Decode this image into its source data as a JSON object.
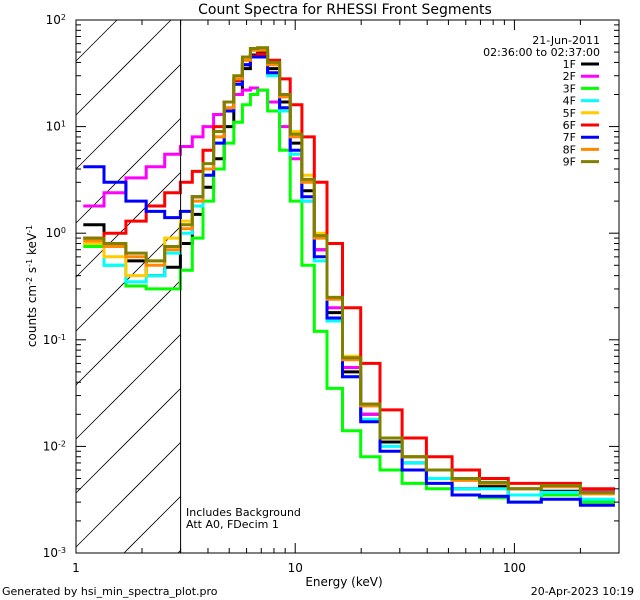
{
  "chart_data": {
    "type": "line",
    "title": "Count Spectra for RHESSI Front Segments",
    "xlabel": "Energy (keV)",
    "ylabel": "counts cm^-2 s^-1 keV^-1",
    "xscale": "log",
    "yscale": "log",
    "xlim": [
      1,
      300
    ],
    "ylim": [
      0.001,
      100
    ],
    "x_tick_labels": [
      "1",
      "10",
      "100"
    ],
    "y_tick_labels": [
      "10",
      "10",
      "10",
      "10",
      "10",
      "10"
    ],
    "y_tick_exponents": [
      "-3",
      "-2",
      "-1",
      "0",
      "1",
      "2"
    ],
    "shaded_region": {
      "from_keV": 1,
      "to_keV": 3,
      "style": "diagonal hatch"
    },
    "date": "21-Jun-2011",
    "time_range": "02:36:00 to 02:37:00",
    "annotations": [
      "Includes Background",
      "Att A0, FDecim 1"
    ],
    "series": [
      {
        "name": "1F",
        "color": "#000000",
        "values": [
          1.2,
          0.75,
          0.55,
          0.4,
          0.48,
          0.8,
          1.5,
          2.7,
          5.0,
          10.0,
          20.0,
          35.0,
          47.0,
          50.0,
          35.0,
          17.0,
          7.0,
          2.5,
          0.7,
          0.18,
          0.05,
          0.02,
          0.011,
          0.007,
          0.005,
          0.004,
          0.0042,
          0.0035,
          0.0038,
          0.003
        ]
      },
      {
        "name": "2F",
        "color": "#ff00ff",
        "values": [
          1.8,
          2.4,
          3.3,
          4.2,
          5.5,
          6.5,
          8.0,
          10.0,
          13.0,
          17.0,
          20.0,
          22.0,
          23.0,
          22.0,
          17.0,
          10.0,
          5.0,
          2.0,
          0.7,
          0.2,
          0.055,
          0.02,
          0.012,
          0.008,
          0.006,
          0.005,
          0.0045,
          0.004,
          0.0042,
          0.0038
        ]
      },
      {
        "name": "3F",
        "color": "#00ff00",
        "values": [
          0.75,
          0.5,
          0.32,
          0.3,
          0.3,
          0.45,
          0.9,
          2.0,
          4.0,
          7.0,
          11.0,
          16.0,
          20.0,
          22.0,
          14.0,
          6.0,
          2.0,
          0.5,
          0.12,
          0.035,
          0.014,
          0.008,
          0.006,
          0.0045,
          0.004,
          0.0035,
          0.0033,
          0.003,
          0.0035,
          0.003
        ]
      },
      {
        "name": "4F",
        "color": "#00ffff",
        "values": [
          0.8,
          0.5,
          0.35,
          0.4,
          0.65,
          1.0,
          1.8,
          3.5,
          7.0,
          14.0,
          25.0,
          38.0,
          46.0,
          45.0,
          30.0,
          14.0,
          5.5,
          2.0,
          0.55,
          0.15,
          0.045,
          0.018,
          0.01,
          0.007,
          0.005,
          0.004,
          0.004,
          0.0035,
          0.0037,
          0.0032
        ]
      },
      {
        "name": "5F",
        "color": "#ffcc00",
        "values": [
          0.8,
          0.6,
          0.4,
          0.55,
          0.9,
          1.3,
          2.2,
          4.0,
          8.0,
          15.0,
          27.0,
          42.0,
          52.0,
          55.0,
          40.0,
          20.0,
          9.0,
          3.5,
          1.0,
          0.25,
          0.07,
          0.025,
          0.012,
          0.008,
          0.006,
          0.005,
          0.0045,
          0.004,
          0.0042,
          0.0036
        ]
      },
      {
        "name": "6F",
        "color": "#ff0000",
        "values": [
          0.9,
          1.0,
          1.3,
          1.8,
          2.4,
          3.0,
          3.8,
          6.0,
          10.0,
          17.0,
          27.0,
          38.0,
          46.0,
          48.0,
          42.0,
          28.0,
          16.0,
          8.0,
          3.0,
          0.8,
          0.2,
          0.06,
          0.022,
          0.012,
          0.008,
          0.006,
          0.005,
          0.0045,
          0.0045,
          0.004
        ]
      },
      {
        "name": "7F",
        "color": "#0000ff",
        "values": [
          4.2,
          3.0,
          2.0,
          1.6,
          1.4,
          1.6,
          2.2,
          3.5,
          7.0,
          14.0,
          25.0,
          38.0,
          45.0,
          45.0,
          32.0,
          15.0,
          6.0,
          2.2,
          0.6,
          0.16,
          0.045,
          0.017,
          0.009,
          0.006,
          0.0045,
          0.0035,
          0.0034,
          0.003,
          0.0032,
          0.0028
        ]
      },
      {
        "name": "8F",
        "color": "#ff8800",
        "values": [
          0.85,
          0.75,
          0.6,
          0.5,
          0.7,
          1.1,
          2.0,
          4.0,
          8.0,
          15.0,
          28.0,
          42.0,
          52.0,
          52.0,
          38.0,
          19.0,
          8.0,
          3.0,
          0.9,
          0.24,
          0.065,
          0.024,
          0.012,
          0.008,
          0.006,
          0.0048,
          0.0045,
          0.004,
          0.0042,
          0.0036
        ]
      },
      {
        "name": "9F",
        "color": "#808000",
        "values": [
          0.9,
          0.8,
          0.65,
          0.55,
          0.75,
          1.2,
          2.2,
          4.5,
          9.0,
          17.0,
          30.0,
          45.0,
          54.0,
          55.0,
          40.0,
          20.0,
          8.5,
          3.2,
          0.95,
          0.25,
          0.068,
          0.025,
          0.012,
          0.008,
          0.006,
          0.005,
          0.0046,
          0.004,
          0.0043,
          0.0037
        ]
      }
    ],
    "x": [
      1.2,
      1.5,
      1.9,
      2.3,
      2.8,
      3.2,
      3.6,
      4.0,
      4.5,
      5.0,
      5.5,
      6.0,
      6.5,
      7.0,
      8.0,
      9.0,
      10.0,
      11.5,
      13.0,
      15.0,
      18.0,
      22.0,
      27.0,
      35.0,
      45.0,
      60.0,
      80.0,
      110.0,
      160.0,
      250.0
    ]
  },
  "footer": {
    "left": "Generated by hsi_min_spectra_plot.pro",
    "right": "20-Apr-2023 10:19"
  }
}
